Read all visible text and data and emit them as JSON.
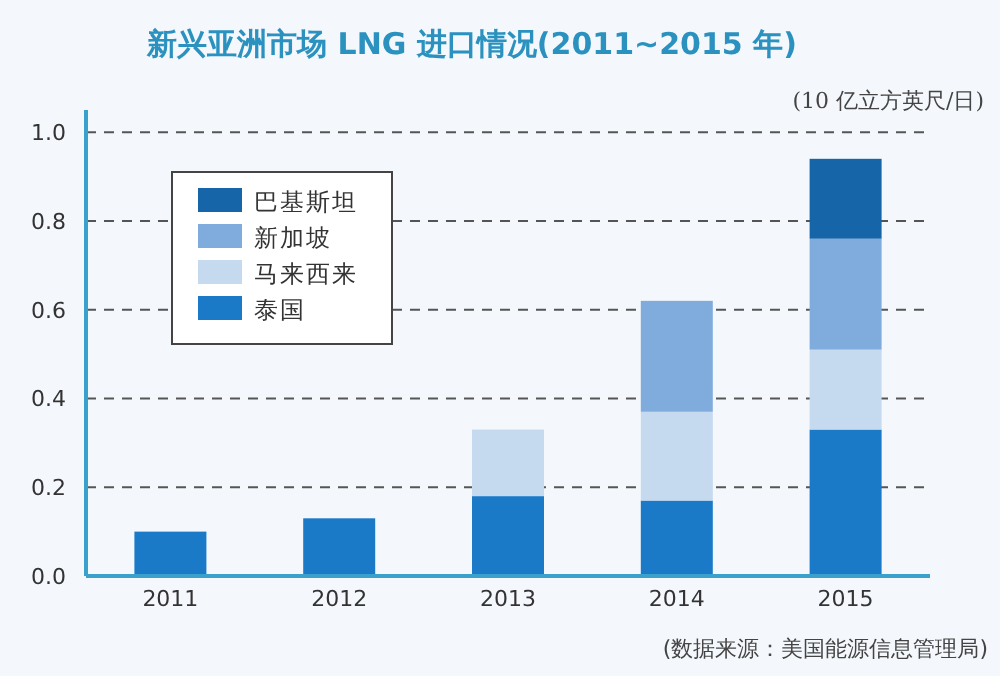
{
  "chart_data": {
    "type": "bar",
    "stacked": true,
    "title": "新兴亚洲市场 LNG 进口情况(2011~2015 年)",
    "ylabel": "(10 亿立方英尺/日)",
    "annotations": [
      "(数据来源：美国能源信息管理局)"
    ],
    "categories": [
      "2011",
      "2012",
      "2013",
      "2014",
      "2015"
    ],
    "series": [
      {
        "name": "泰国",
        "color": "#1a7ac8",
        "values": [
          0.1,
          0.13,
          0.18,
          0.17,
          0.33
        ]
      },
      {
        "name": "马来西来",
        "color": "#c5d9ef",
        "values": [
          null,
          null,
          0.15,
          0.2,
          0.18
        ]
      },
      {
        "name": "新加坡",
        "color": "#80acdd",
        "values": [
          null,
          null,
          null,
          0.25,
          0.25
        ]
      },
      {
        "name": "巴基斯坦",
        "color": "#1565a8",
        "values": [
          null,
          null,
          null,
          null,
          0.18
        ]
      }
    ],
    "ylim": [
      0,
      1.05
    ],
    "yticks": [
      {
        "value": 0,
        "label": "0.0"
      },
      {
        "value": 0.2,
        "label": "0.2"
      },
      {
        "value": 0.4,
        "label": "0.4"
      },
      {
        "value": 0.6,
        "label": "0.6"
      },
      {
        "value": 0.8,
        "label": "0.8"
      },
      {
        "value": 1.0,
        "label": "1.0"
      }
    ],
    "grid": "y",
    "legend": "top left"
  }
}
